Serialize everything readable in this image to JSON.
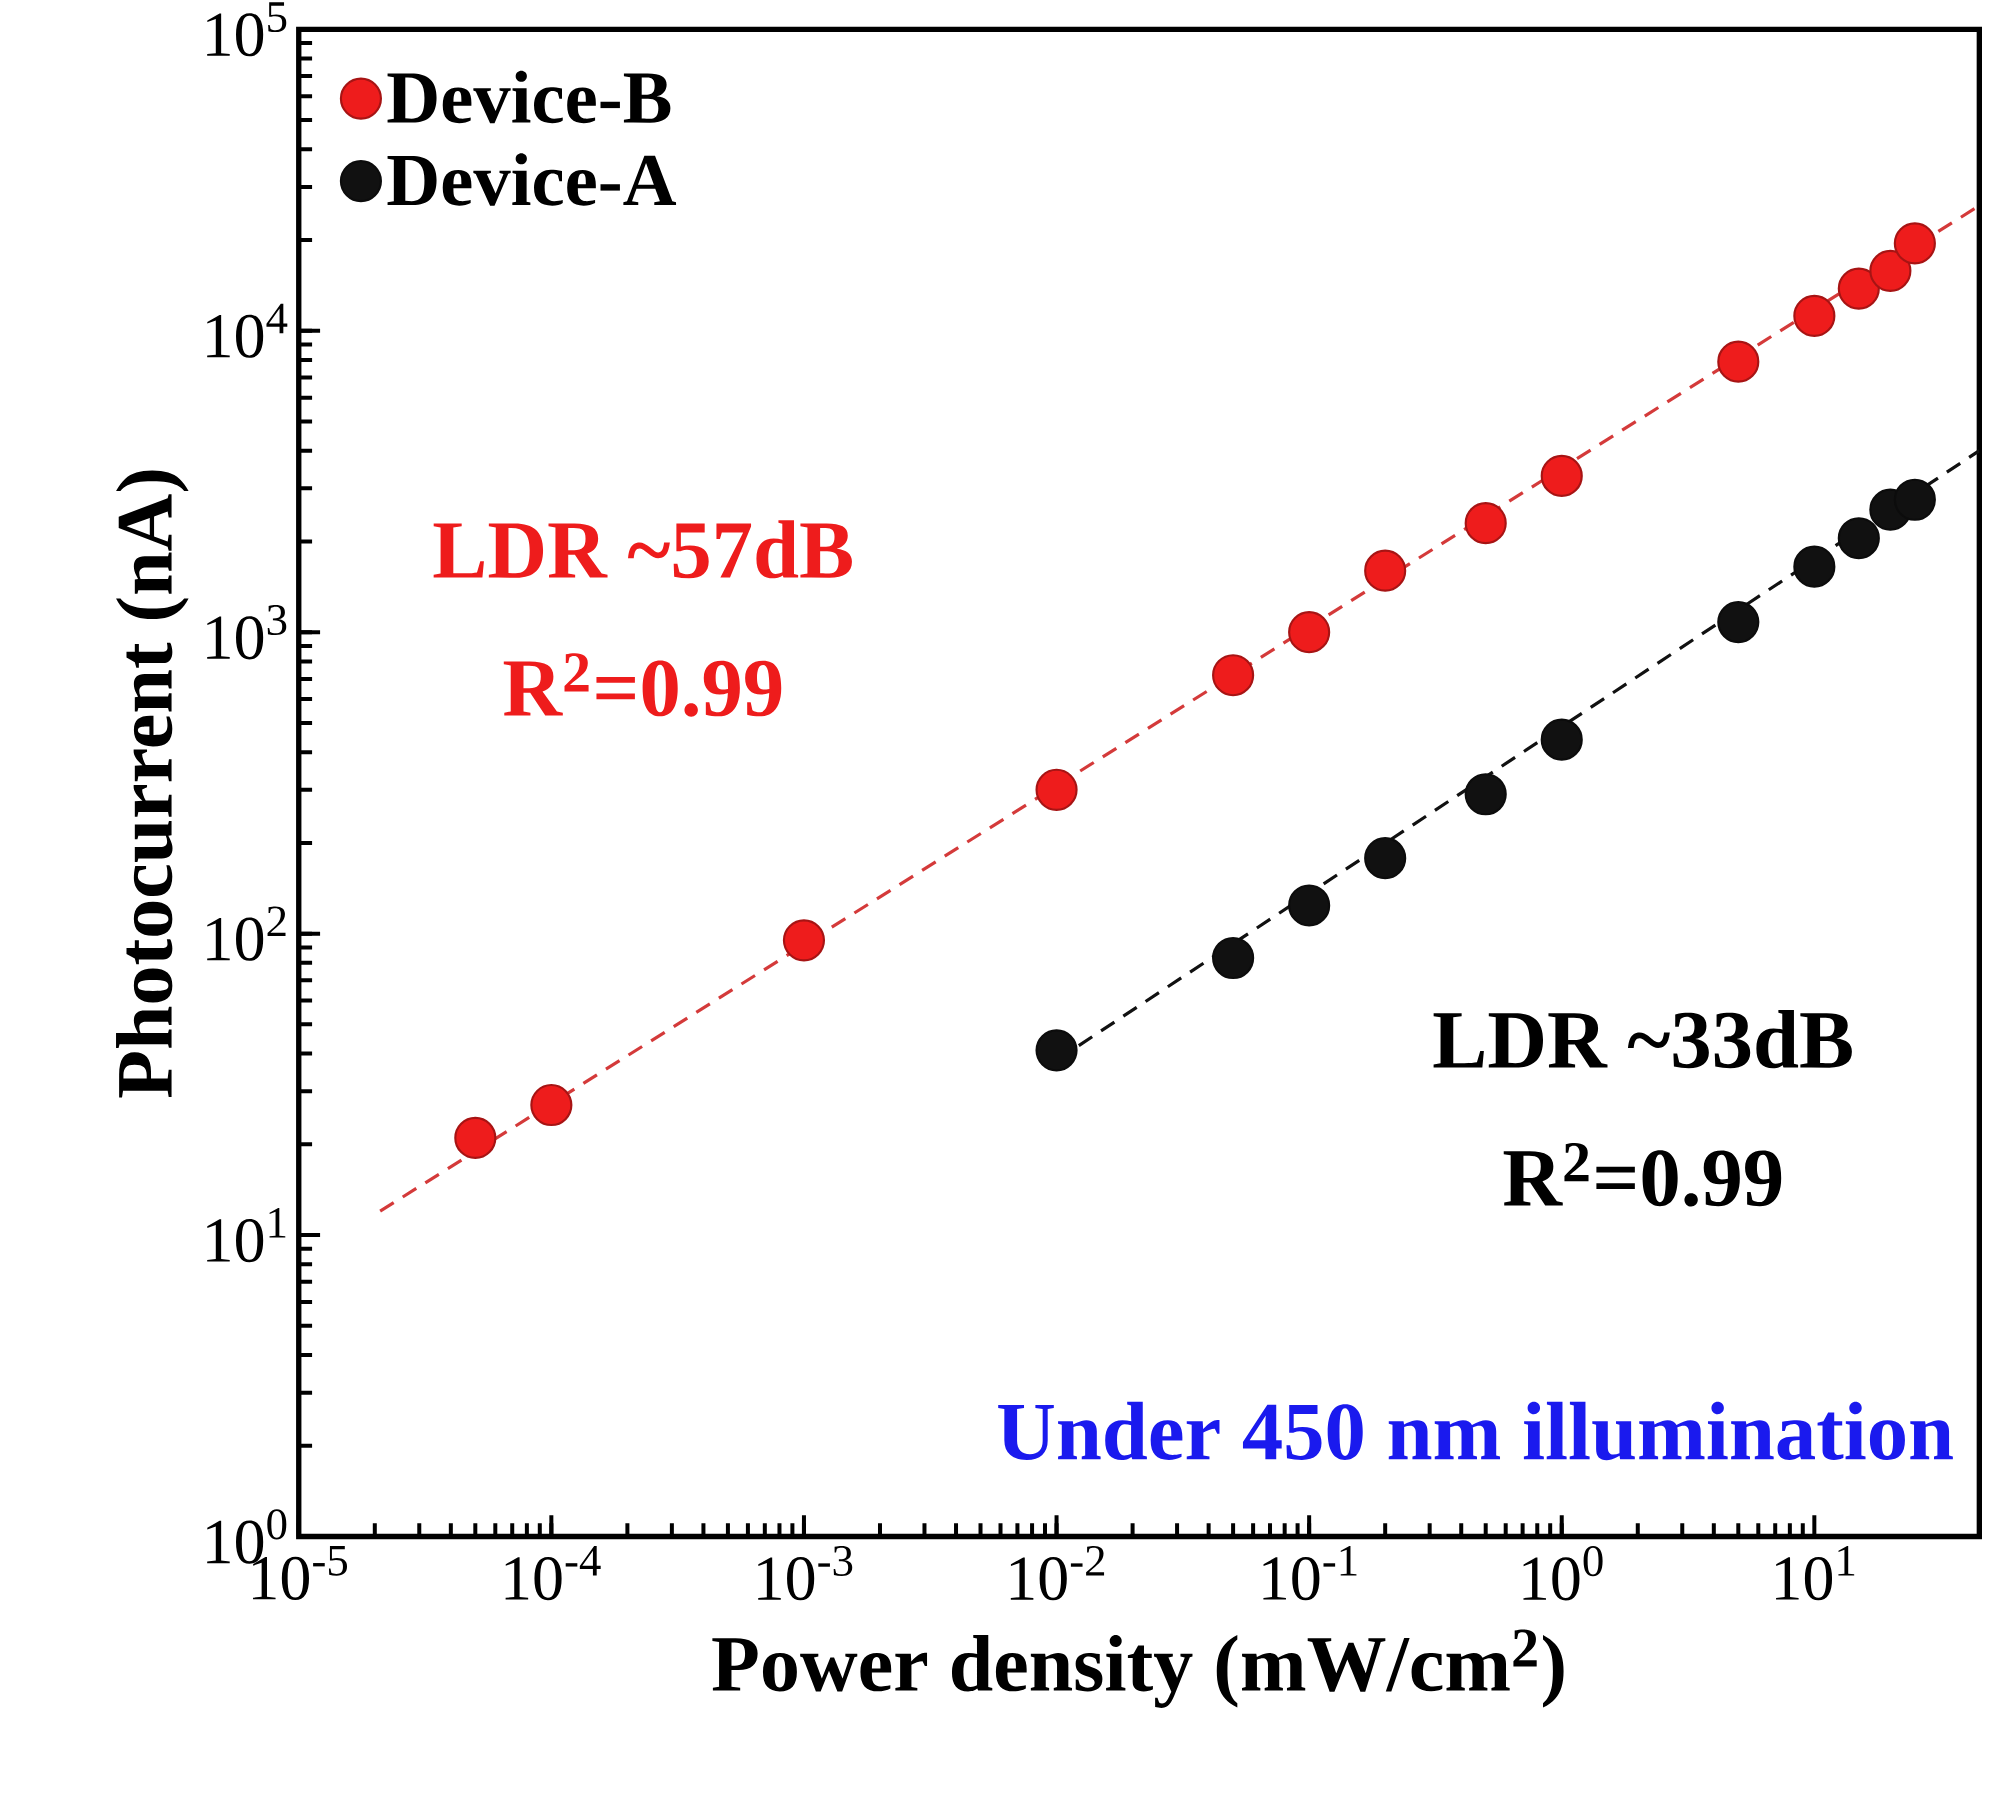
{
  "chart_data": {
    "type": "scatter",
    "xlabel": "Power density (mW/cm$^{2}$)",
    "ylabel": "Photocurrent (nA)",
    "log": "xy",
    "marker": "circle",
    "legend": "top left",
    "grid": false,
    "xlim": [
      1e-05,
      45
    ],
    "ylim": [
      1,
      100000
    ],
    "xticks": [
      {
        "value": 1e-05,
        "label": "10$^{-5}$"
      },
      {
        "value": 0.0001,
        "label": "10$^{-4}$"
      },
      {
        "value": 0.001,
        "label": "10$^{-3}$"
      },
      {
        "value": 0.01,
        "label": "10$^{-2}$"
      },
      {
        "value": 0.1,
        "label": "10$^{-1}$"
      },
      {
        "value": 1,
        "label": "10$^{0}$"
      },
      {
        "value": 10,
        "label": "10$^{1}$"
      }
    ],
    "yticks": [
      {
        "value": 1,
        "label": "10$^{0}$"
      },
      {
        "value": 10,
        "label": "10$^{1}$"
      },
      {
        "value": 100,
        "label": "10$^{2}$"
      },
      {
        "value": 1000,
        "label": "10$^{3}$"
      },
      {
        "value": 10000,
        "label": "10$^{4}$"
      },
      {
        "value": 100000,
        "label": "10$^{5}$"
      }
    ],
    "series": [
      {
        "name": "Device-B",
        "color": "#ee1c1c",
        "x": [
          5e-05,
          0.0001,
          0.001,
          0.01,
          0.05,
          0.1,
          0.2,
          0.5,
          1,
          5,
          10,
          15,
          20,
          25
        ],
        "values": [
          21,
          27,
          95,
          300,
          720,
          1000,
          1600,
          2300,
          3300,
          7900,
          11200,
          13800,
          15800,
          19500
        ]
      },
      {
        "name": "Device-A",
        "color": "#111111",
        "x": [
          0.01,
          0.05,
          0.1,
          0.2,
          0.5,
          1,
          5,
          10,
          15,
          20,
          25
        ],
        "values": [
          41,
          83,
          124,
          178,
          290,
          440,
          1080,
          1650,
          2050,
          2550,
          2750
        ]
      },
      {
        "type": "line",
        "line_style": "dashed",
        "marker": "none",
        "color": "#d43a3a",
        "x": [
          2.1e-05,
          45
        ],
        "values": [
          12,
          26000
        ]
      },
      {
        "type": "line",
        "line_style": "dashed",
        "marker": "none",
        "color": "#111111",
        "x": [
          0.01,
          45
        ],
        "values": [
          38,
          4000
        ]
      }
    ],
    "annotations": [
      "LDR  ~57dB",
      "R$^{2}$=0.99",
      "LDR  ~33dB",
      "R$^{2}$=0.99",
      "Under 450 nm illumination"
    ]
  }
}
